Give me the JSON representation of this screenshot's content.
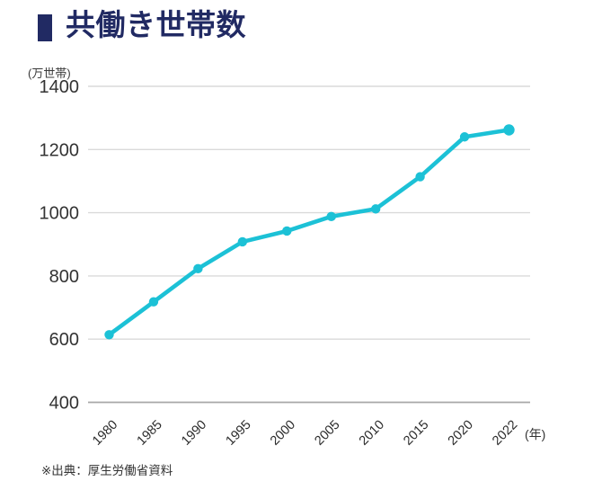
{
  "header": {
    "title": "共働き世帯数",
    "accent_color": "#212a63"
  },
  "footer": {
    "source": "※出典：厚生労働省資料"
  },
  "chart_data": {
    "type": "line",
    "title": "共働き世帯数",
    "unit_label": "(万世帯)",
    "x_unit_label": "(年)",
    "categories": [
      "1980",
      "1985",
      "1990",
      "1995",
      "2000",
      "2005",
      "2010",
      "2015",
      "2020",
      "2022"
    ],
    "values": [
      614,
      718,
      823,
      908,
      942,
      988,
      1012,
      1114,
      1240,
      1262
    ],
    "ylim": [
      400,
      1400
    ],
    "yticks": [
      400,
      600,
      800,
      1000,
      1200,
      1400
    ],
    "grid": true,
    "legend": false,
    "marker": "circle",
    "line_color": "#1cc1d6",
    "grid_color": "#dadada",
    "axis_color": "#a8a8a8",
    "tick_label_color": "#333333"
  }
}
